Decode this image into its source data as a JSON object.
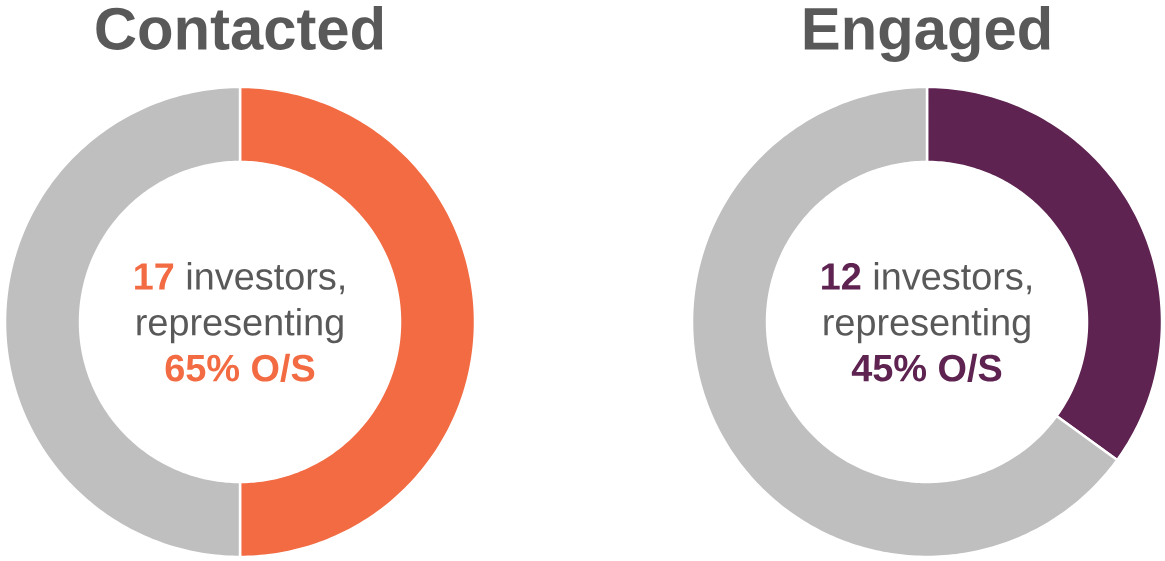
{
  "chart_data": [
    {
      "type": "donut",
      "title": "Contacted",
      "categories": [
        null,
        null
      ],
      "values": [
        50,
        50
      ],
      "colors": [
        "#f26b43",
        "#bfbfbf"
      ],
      "annotations": [
        "17",
        "investors,",
        "representing",
        "65% O/S"
      ]
    },
    {
      "type": "donut",
      "title": "Engaged",
      "categories": [
        null,
        null
      ],
      "values": [
        35,
        65
      ],
      "colors": [
        "#5e2350",
        "#bfbfbf"
      ],
      "annotations": [
        "12",
        "investors,",
        "representing",
        "45% O/S"
      ]
    }
  ]
}
